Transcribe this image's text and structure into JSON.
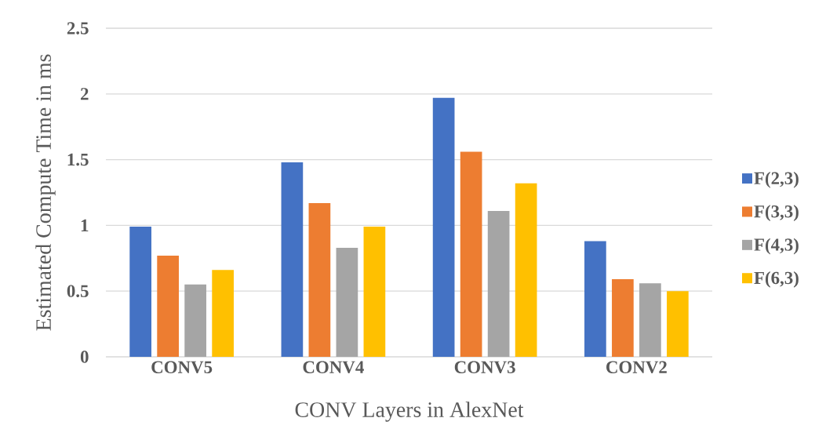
{
  "chart_data": {
    "type": "bar",
    "xlabel": "CONV Layers in AlexNet",
    "ylabel": "Estimated Compute Time in ms",
    "categories": [
      "CONV5",
      "CONV4",
      "CONV3",
      "CONV2"
    ],
    "series": [
      {
        "name": "F(2,3)",
        "color": "#4472c4",
        "values": [
          0.99,
          1.48,
          1.97,
          0.88
        ]
      },
      {
        "name": "F(3,3)",
        "color": "#ed7d31",
        "values": [
          0.77,
          1.17,
          1.56,
          0.59
        ]
      },
      {
        "name": "F(4,3)",
        "color": "#a5a5a5",
        "values": [
          0.55,
          0.83,
          1.11,
          0.56
        ]
      },
      {
        "name": "F(6,3)",
        "color": "#ffc000",
        "values": [
          0.66,
          0.99,
          1.32,
          0.5
        ]
      }
    ],
    "ylim": [
      0,
      2.5
    ],
    "yticks": [
      0,
      0.5,
      1,
      1.5,
      2,
      2.5
    ],
    "grid": "y",
    "legend": "right"
  }
}
